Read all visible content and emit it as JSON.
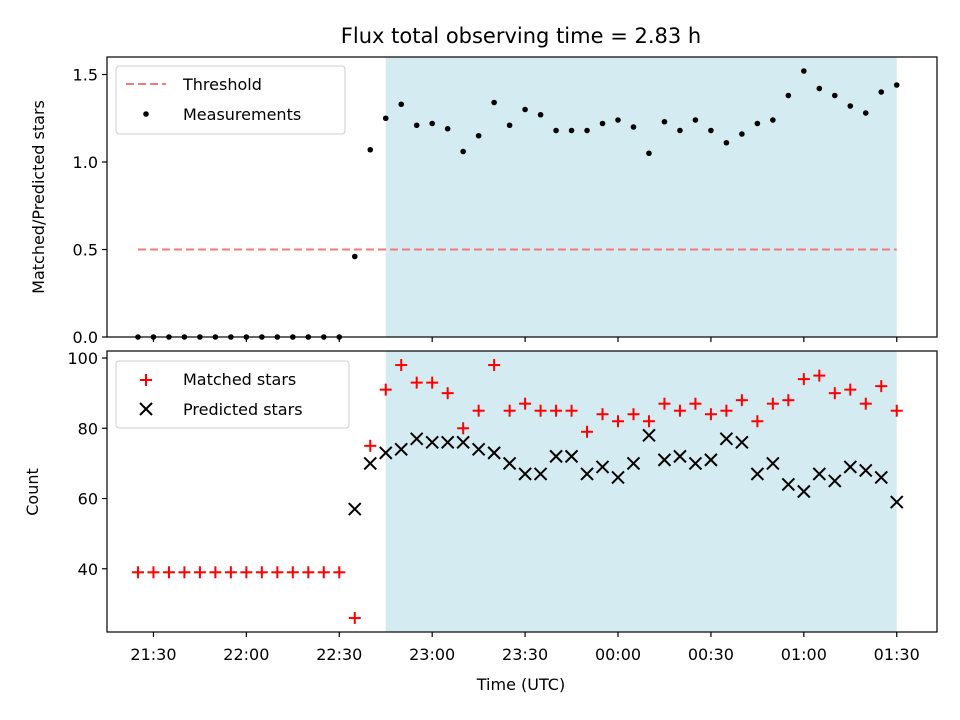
{
  "chart_data": {
    "title": "Flux total observing time = 2.83 h",
    "xlabel": "Time (UTC)",
    "x_unit": "time (UTC, HH:MM)",
    "x_ticks": [
      "21:30",
      "22:00",
      "22:30",
      "23:00",
      "23:30",
      "00:00",
      "00:30",
      "01:00",
      "01:30"
    ],
    "x_range": [
      "21:15",
      "01:43"
    ],
    "observing_window": [
      "22:45",
      "01:30"
    ],
    "colors": {
      "window": "#d4ebf2",
      "threshold": "#f27a7a",
      "matched": "#ff0000",
      "predicted": "#000000",
      "measurements": "#000000"
    },
    "panels": [
      {
        "type": "scatter",
        "ylabel": "Matched/Predicted stars",
        "ylim": [
          0,
          1.6
        ],
        "y_ticks": [
          "0.0",
          "0.5",
          "1.0",
          "1.5"
        ],
        "legend": [
          "Threshold",
          "Measurements"
        ],
        "legend_position": "top-left",
        "threshold": {
          "name": "Threshold",
          "value": 0.5,
          "x_range": [
            "21:25",
            "01:30"
          ]
        },
        "series": [
          {
            "name": "Measurements",
            "marker": "dot",
            "x": [
              "21:25",
              "21:30",
              "21:35",
              "21:40",
              "21:45",
              "21:50",
              "21:55",
              "22:00",
              "22:05",
              "22:10",
              "22:15",
              "22:20",
              "22:25",
              "22:30",
              "22:35",
              "22:40",
              "22:45",
              "22:50",
              "22:55",
              "23:00",
              "23:05",
              "23:10",
              "23:15",
              "23:20",
              "23:25",
              "23:30",
              "23:35",
              "23:40",
              "23:45",
              "23:50",
              "23:55",
              "00:00",
              "00:05",
              "00:10",
              "00:15",
              "00:20",
              "00:25",
              "00:30",
              "00:35",
              "00:40",
              "00:45",
              "00:50",
              "00:55",
              "01:00",
              "01:05",
              "01:10",
              "01:15",
              "01:20",
              "01:25",
              "01:30"
            ],
            "y": [
              0,
              0,
              0,
              0,
              0,
              0,
              0,
              0,
              0,
              0,
              0,
              0,
              0,
              0,
              0.46,
              1.07,
              1.25,
              1.33,
              1.21,
              1.22,
              1.19,
              1.06,
              1.15,
              1.34,
              1.21,
              1.3,
              1.27,
              1.18,
              1.18,
              1.18,
              1.22,
              1.24,
              1.2,
              1.05,
              1.23,
              1.18,
              1.24,
              1.18,
              1.11,
              1.16,
              1.22,
              1.24,
              1.38,
              1.52,
              1.42,
              1.38,
              1.32,
              1.28,
              1.4,
              1.44
            ]
          }
        ]
      },
      {
        "type": "scatter",
        "ylabel": "Count",
        "ylim": [
          22,
          102
        ],
        "y_ticks": [
          "40",
          "60",
          "80",
          "100"
        ],
        "legend": [
          "Matched stars",
          "Predicted stars"
        ],
        "legend_position": "top-left",
        "series": [
          {
            "name": "Matched stars",
            "marker": "plus",
            "x": [
              "21:25",
              "21:30",
              "21:35",
              "21:40",
              "21:45",
              "21:50",
              "21:55",
              "22:00",
              "22:05",
              "22:10",
              "22:15",
              "22:20",
              "22:25",
              "22:30",
              "22:35",
              "22:40",
              "22:45",
              "22:50",
              "22:55",
              "23:00",
              "23:05",
              "23:10",
              "23:15",
              "23:20",
              "23:25",
              "23:30",
              "23:35",
              "23:40",
              "23:45",
              "23:50",
              "23:55",
              "00:00",
              "00:05",
              "00:10",
              "00:15",
              "00:20",
              "00:25",
              "00:30",
              "00:35",
              "00:40",
              "00:45",
              "00:50",
              "00:55",
              "01:00",
              "01:05",
              "01:10",
              "01:15",
              "01:20",
              "01:25",
              "01:30"
            ],
            "y": [
              39,
              39,
              39,
              39,
              39,
              39,
              39,
              39,
              39,
              39,
              39,
              39,
              39,
              39,
              26,
              75,
              91,
              98,
              93,
              93,
              90,
              80,
              85,
              98,
              85,
              87,
              85,
              85,
              85,
              79,
              84,
              82,
              84,
              82,
              87,
              85,
              87,
              84,
              85,
              88,
              82,
              87,
              88,
              94,
              95,
              90,
              91,
              87,
              92,
              85
            ]
          },
          {
            "name": "Predicted stars",
            "marker": "x",
            "x": [
              "22:35",
              "22:40",
              "22:45",
              "22:50",
              "22:55",
              "23:00",
              "23:05",
              "23:10",
              "23:15",
              "23:20",
              "23:25",
              "23:30",
              "23:35",
              "23:40",
              "23:45",
              "23:50",
              "23:55",
              "00:00",
              "00:05",
              "00:10",
              "00:15",
              "00:20",
              "00:25",
              "00:30",
              "00:35",
              "00:40",
              "00:45",
              "00:50",
              "00:55",
              "01:00",
              "01:05",
              "01:10",
              "01:15",
              "01:20",
              "01:25",
              "01:30"
            ],
            "y": [
              57,
              70,
              73,
              74,
              77,
              76,
              76,
              76,
              74,
              73,
              70,
              67,
              67,
              72,
              72,
              67,
              69,
              66,
              70,
              78,
              71,
              72,
              70,
              71,
              77,
              76,
              67,
              70,
              64,
              62,
              67,
              65,
              69,
              68,
              66,
              59
            ]
          }
        ]
      }
    ]
  }
}
